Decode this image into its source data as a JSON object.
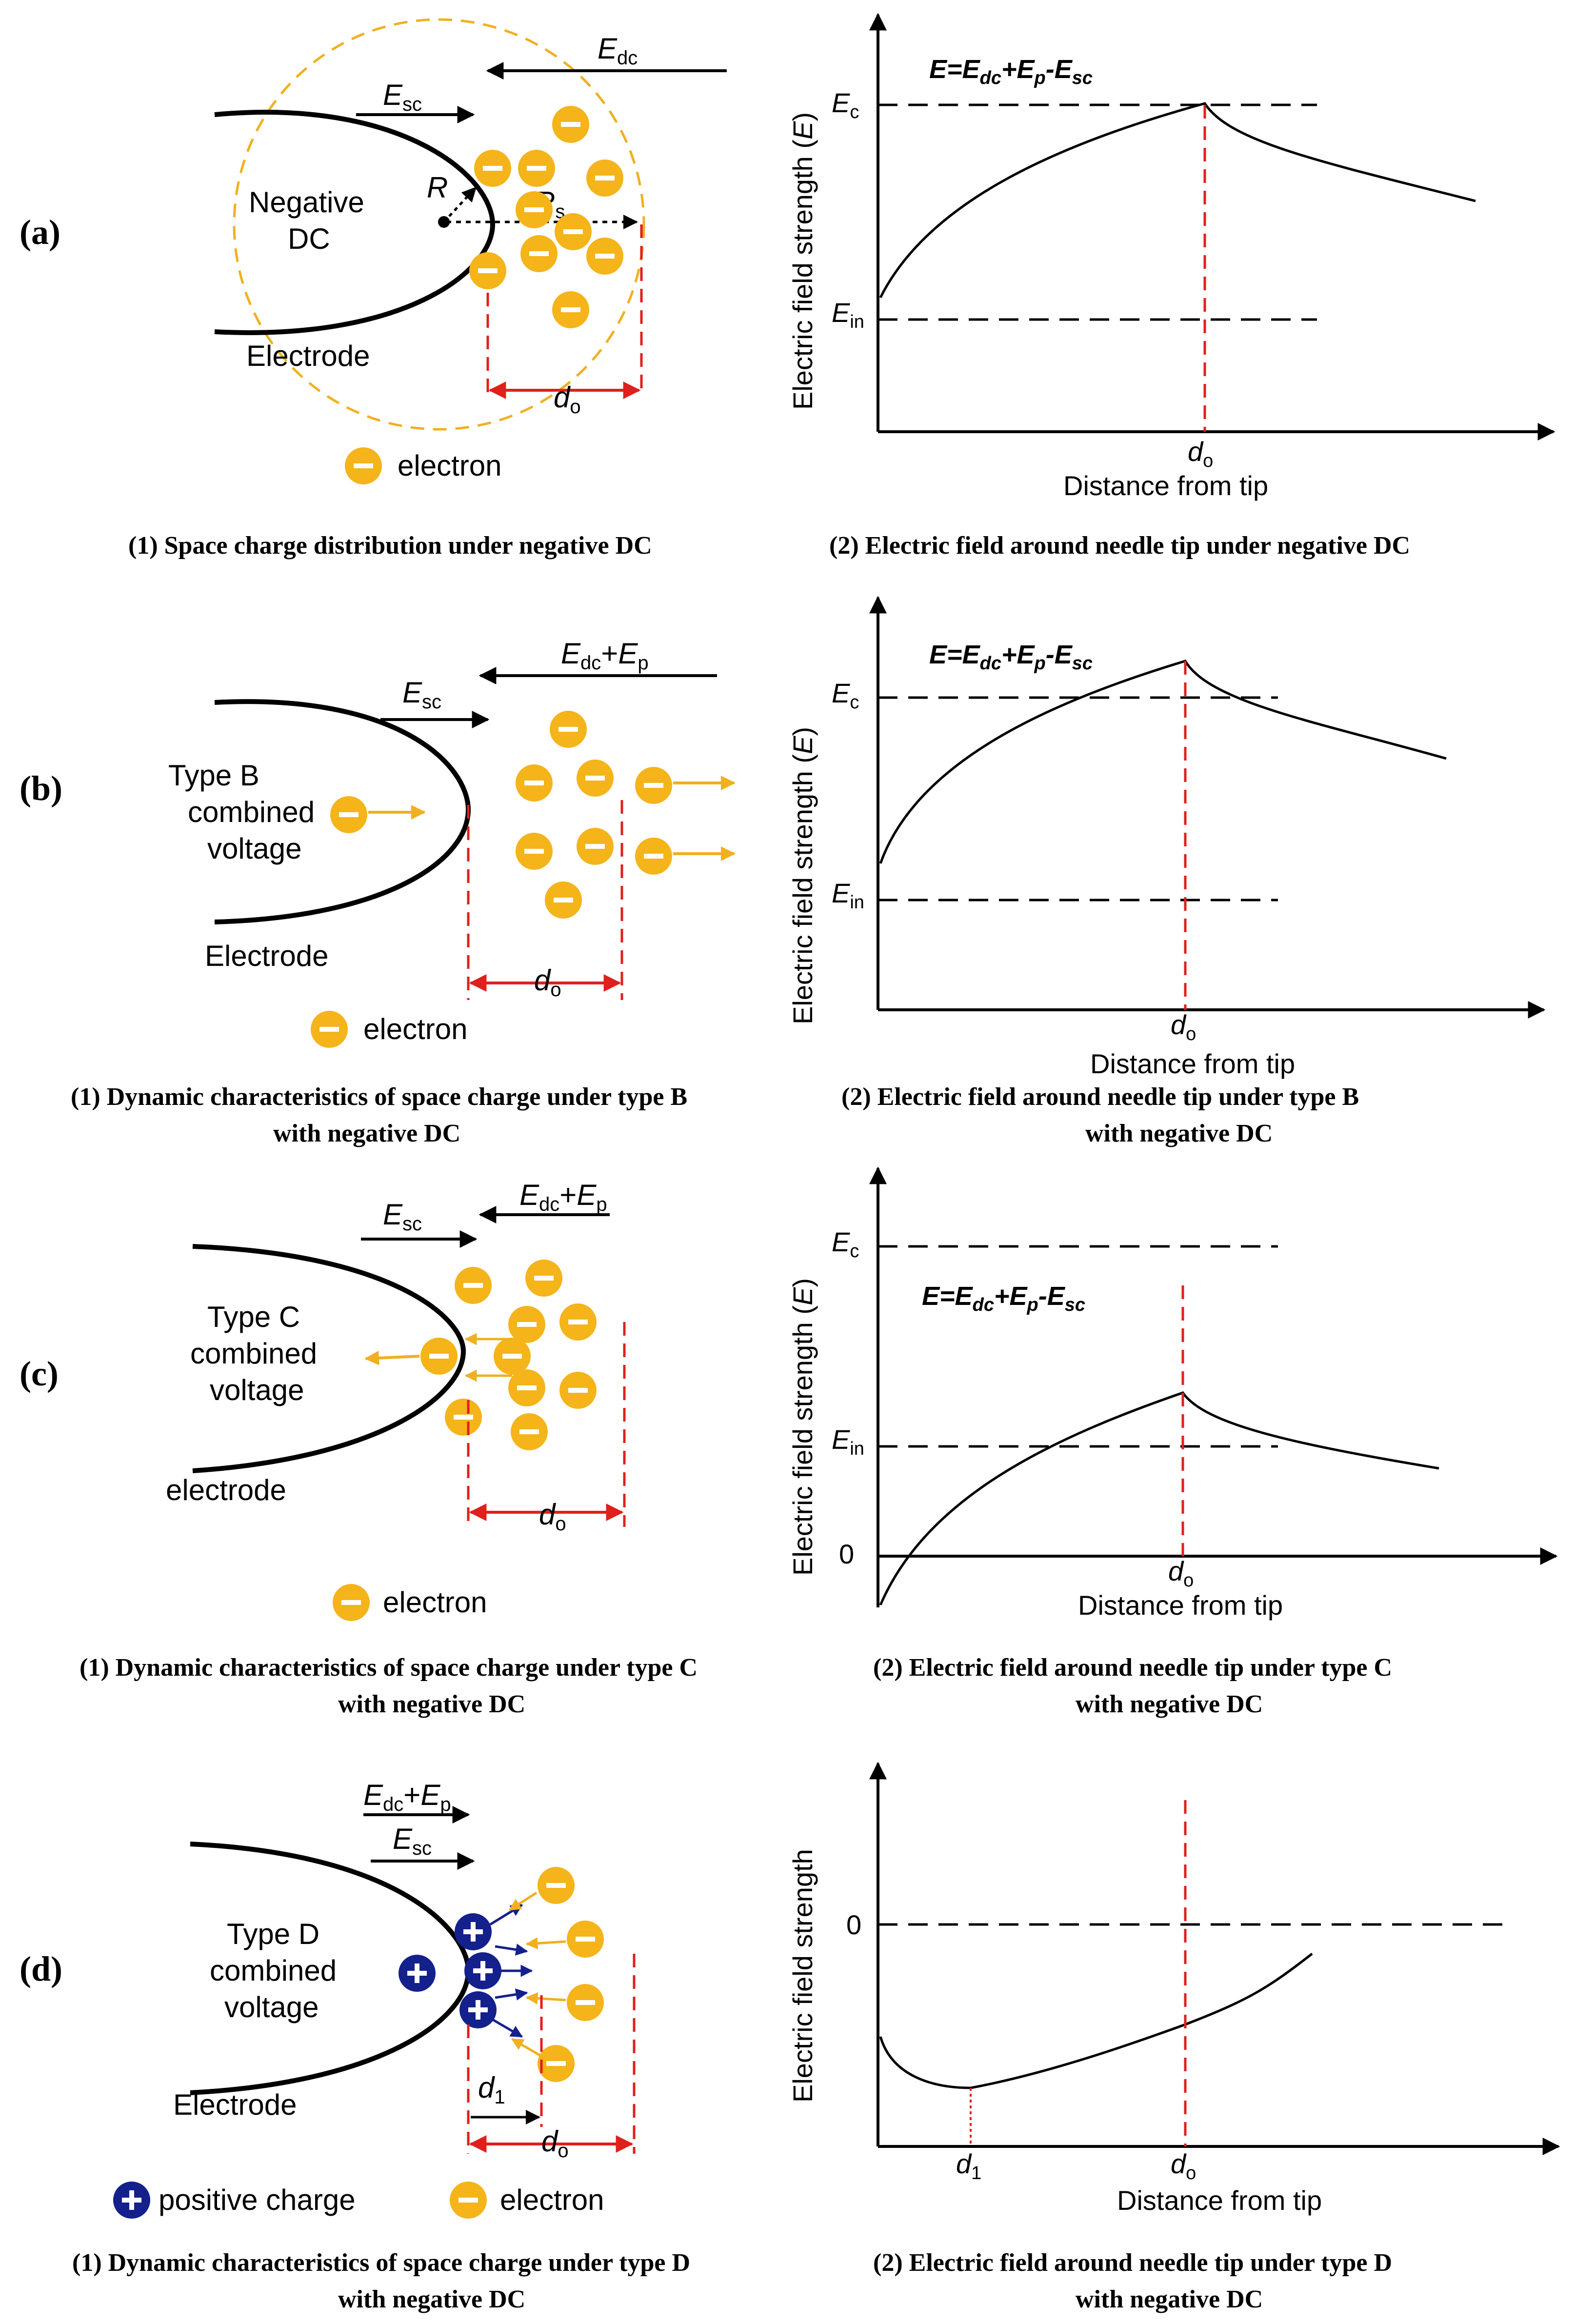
{
  "colors": {
    "electron_fill": "#f4b41a",
    "positive_fill": "#14208c",
    "guide_red": "#e0201c",
    "sphere_dash": "#f0b020",
    "ink": "#000000"
  },
  "icons": {
    "electron": "minus-circle-icon",
    "positive": "plus-circle-icon"
  },
  "panels": [
    {
      "label": "(a)",
      "electrode_label": [
        "Negative",
        "DC"
      ],
      "electrode_name": "Electrode",
      "legend": [
        {
          "icon": "electron",
          "text": "electron"
        }
      ],
      "arrows": {
        "E_dc": "E",
        "E_dc_sub": "dc",
        "E_sc": "E",
        "E_sc_sub": "sc",
        "R": "R",
        "R_s": "R",
        "R_s_sub": "s"
      },
      "d_label": "d",
      "d_sub": "o",
      "caption_left": [
        "(1) Space charge distribution under negative DC"
      ],
      "caption_right": [
        "(2) Electric field around needle tip under negative DC"
      ],
      "chart": {
        "ylabel_main": "Electric field strength (",
        "ylabel_var": "E",
        "ylabel_end": ")",
        "xlabel": "Distance from tip",
        "equation": "E=E",
        "equation_parts": [
          "E",
          "=",
          "E",
          "dc",
          "+",
          "E",
          "p",
          "-",
          "E",
          "sc"
        ],
        "ec": "E",
        "ec_sub": "c",
        "ein": "E",
        "ein_sub": "in",
        "xtick": "d",
        "xtick_sub": "o"
      }
    },
    {
      "label": "(b)",
      "electrode_label": [
        "Type B",
        "combined",
        "voltage"
      ],
      "electrode_name": "Electrode",
      "legend": [
        {
          "icon": "electron",
          "text": "electron"
        }
      ],
      "arrows": {
        "E_dc": "E",
        "E_dc_sub": "dc",
        "E_p": "E",
        "E_p_sub": "p",
        "E_sc": "E",
        "E_sc_sub": "sc"
      },
      "d_label": "d",
      "d_sub": "o",
      "caption_left": [
        "(1) Dynamic characteristics of space charge under type B",
        "with negative DC"
      ],
      "caption_right": [
        "(2) Electric field around needle tip under type B",
        "with negative DC"
      ],
      "chart": {
        "ylabel_main": "Electric field strength (",
        "ylabel_var": "E",
        "ylabel_end": ")",
        "xlabel": "Distance from tip",
        "ec": "E",
        "ec_sub": "c",
        "ein": "E",
        "ein_sub": "in",
        "xtick": "d",
        "xtick_sub": "o"
      }
    },
    {
      "label": "(c)",
      "electrode_label": [
        "Type C",
        "combined",
        "voltage"
      ],
      "electrode_name": "electrode",
      "legend": [
        {
          "icon": "electron",
          "text": "electron"
        }
      ],
      "arrows": {
        "E_dc": "E",
        "E_dc_sub": "dc",
        "E_p": "E",
        "E_p_sub": "p",
        "E_sc": "E",
        "E_sc_sub": "sc"
      },
      "d_label": "d",
      "d_sub": "o",
      "caption_left": [
        "(1) Dynamic characteristics of space charge under type C",
        "with negative DC"
      ],
      "caption_right": [
        "(2) Electric field around needle tip under type C",
        "with negative DC"
      ],
      "chart": {
        "ylabel_main": "Electric field strength (",
        "ylabel_var": "E",
        "ylabel_end": ")",
        "xlabel": "Distance from tip",
        "ec": "E",
        "ec_sub": "c",
        "ein": "E",
        "ein_sub": "in",
        "zero": "0",
        "xtick": "d",
        "xtick_sub": "o"
      }
    },
    {
      "label": "(d)",
      "electrode_label": [
        "Type D",
        "combined",
        "voltage"
      ],
      "electrode_name": "Electrode",
      "legend": [
        {
          "icon": "positive",
          "text": "positive charge"
        },
        {
          "icon": "electron",
          "text": "electron"
        }
      ],
      "arrows": {
        "E_dc": "E",
        "E_dc_sub": "dc",
        "E_p": "E",
        "E_p_sub": "p",
        "E_sc": "E",
        "E_sc_sub": "sc"
      },
      "d_label": "d",
      "d_sub": "o",
      "d1_label": "d",
      "d1_sub": "1",
      "caption_left": [
        "(1) Dynamic characteristics of space charge under type D",
        "with negative DC"
      ],
      "caption_right": [
        "(2) Electric field around needle tip under type D",
        "with negative DC"
      ],
      "chart": {
        "ylabel_main": "Electric field strength",
        "xlabel": "Distance from tip",
        "zero": "0",
        "xtick": "d",
        "xtick_sub": "o",
        "xtick2": "d",
        "xtick2_sub": "1"
      }
    }
  ]
}
